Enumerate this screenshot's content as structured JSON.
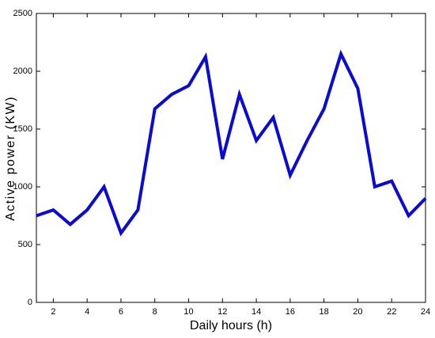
{
  "chart_data": {
    "type": "line",
    "xlabel": "Daily hours (h)",
    "ylabel": "Active power (KW)",
    "x": [
      1,
      2,
      3,
      4,
      5,
      6,
      7,
      8,
      9,
      10,
      11,
      12,
      13,
      14,
      15,
      16,
      17,
      18,
      19,
      20,
      21,
      22,
      23,
      24
    ],
    "values": [
      750,
      800,
      675,
      800,
      1000,
      600,
      800,
      1675,
      1800,
      1875,
      2125,
      1240,
      1800,
      1400,
      1600,
      1100,
      1400,
      1675,
      2150,
      1850,
      1000,
      1050,
      750,
      900
    ],
    "color": "#0a0ad6",
    "xlim": [
      1,
      24
    ],
    "xticks": [
      2,
      4,
      6,
      8,
      10,
      12,
      14,
      16,
      18,
      20,
      22,
      24
    ],
    "ylim": [
      0,
      2500
    ],
    "yticks": [
      0,
      500,
      1000,
      1500,
      2000,
      2500
    ],
    "grid": false
  }
}
